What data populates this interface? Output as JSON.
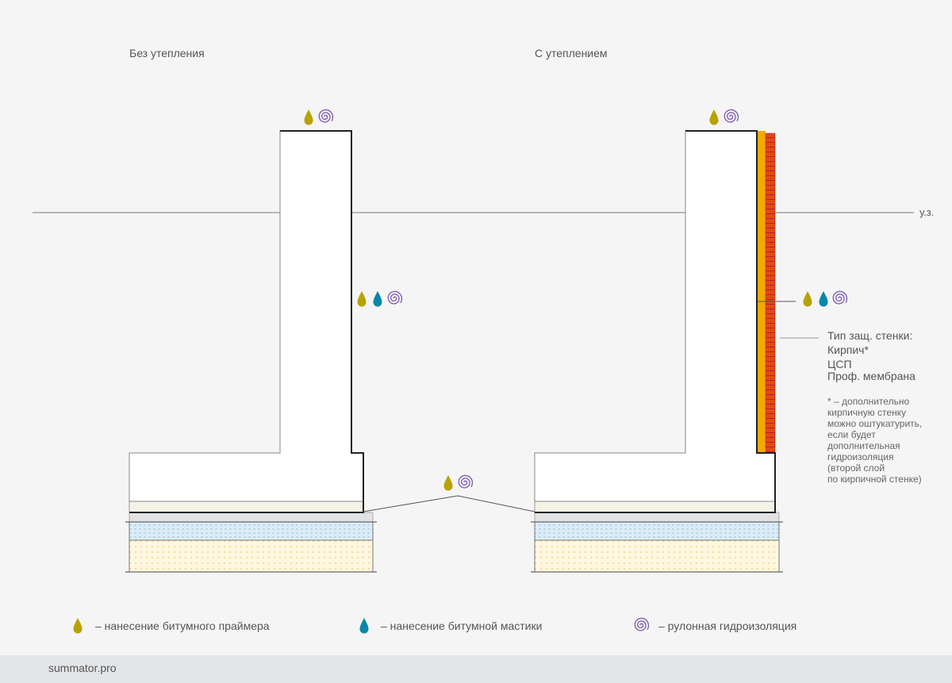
{
  "titles": {
    "left": "Без утепления",
    "right": "С утеплением"
  },
  "ground_level_label": "у.з.",
  "wall_type": {
    "heading": "Тип защ. стенки:",
    "options": [
      "Кирпич*",
      "ЦСП",
      "Проф. мембрана"
    ],
    "note": [
      "* – дополнительно",
      "кирпичную стенку",
      "можно оштукатурить,",
      "если будет",
      "дополнительная",
      "гидроизоляция",
      "(второй слой",
      "по кирпичной стенке)"
    ]
  },
  "legend": [
    {
      "icon": "primer-drop-icon",
      "label": "– нанесение битумного праймера"
    },
    {
      "icon": "mastic-drop-icon",
      "label": "– нанесение битумной мастики"
    },
    {
      "icon": "roll-spiral-icon",
      "label": "– рулонная гидроизоляция"
    }
  ],
  "colors": {
    "primer": "#b8a200",
    "mastic": "#0a87a8",
    "roll": "#7b57b3",
    "insulation": "#f5a800",
    "brick": "#e04a12"
  },
  "footer": {
    "site": "summator.pro"
  }
}
